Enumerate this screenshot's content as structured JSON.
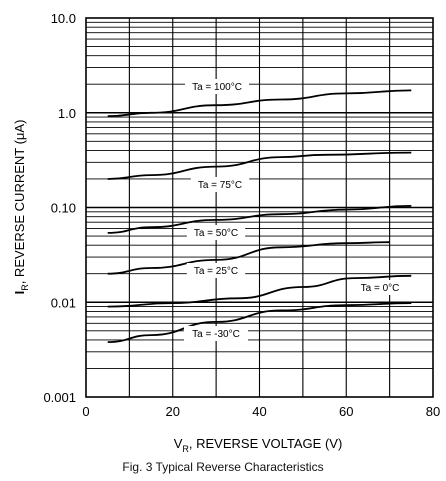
{
  "chart_data": {
    "type": "line",
    "caption": "Fig. 3  Typical Reverse Characteristics",
    "xlabel": {
      "main": "V",
      "sub": "R",
      "rest": ", REVERSE VOLTAGE (V)"
    },
    "ylabel": {
      "main": "I",
      "sub": "R",
      "rest": ", REVERSE CURRENT (μA)"
    },
    "xlim": [
      0,
      80
    ],
    "ylim": [
      0.001,
      10
    ],
    "yscale": "log",
    "grid": true,
    "x_ticks": [
      {
        "value": 0,
        "label": "0"
      },
      {
        "value": 20,
        "label": "20"
      },
      {
        "value": 40,
        "label": "40"
      },
      {
        "value": 60,
        "label": "60"
      },
      {
        "value": 80,
        "label": "80"
      }
    ],
    "y_ticks": [
      {
        "value": 10,
        "label": "10.0"
      },
      {
        "value": 1,
        "label": "1.0"
      },
      {
        "value": 0.1,
        "label": "0.10"
      },
      {
        "value": 0.01,
        "label": "0.01"
      },
      {
        "value": 0.001,
        "label": "0.001"
      }
    ],
    "series": [
      {
        "name": "Ta = 100°C",
        "x": [
          5,
          15,
          30,
          45,
          60,
          75
        ],
        "y": [
          0.92,
          1.0,
          1.2,
          1.38,
          1.6,
          1.72
        ]
      },
      {
        "name": "Ta = 75°C",
        "x": [
          5,
          15,
          30,
          45,
          55,
          75
        ],
        "y": [
          0.2,
          0.22,
          0.27,
          0.34,
          0.36,
          0.38
        ]
      },
      {
        "name": "Ta = 50°C",
        "x": [
          5,
          15,
          30,
          45,
          60,
          75
        ],
        "y": [
          0.054,
          0.062,
          0.074,
          0.085,
          0.095,
          0.104
        ]
      },
      {
        "name": "Ta = 25°C",
        "x": [
          5,
          15,
          30,
          45,
          60,
          70
        ],
        "y": [
          0.02,
          0.023,
          0.028,
          0.038,
          0.042,
          0.043
        ]
      },
      {
        "name": "Ta = 0°C",
        "x": [
          5,
          20,
          35,
          50,
          62,
          75
        ],
        "y": [
          0.009,
          0.0098,
          0.011,
          0.0145,
          0.018,
          0.019
        ]
      },
      {
        "name": "Ta = -30°C",
        "x": [
          5,
          15,
          30,
          45,
          60,
          75
        ],
        "y": [
          0.0038,
          0.0045,
          0.0062,
          0.0082,
          0.0093,
          0.0098
        ]
      }
    ]
  }
}
